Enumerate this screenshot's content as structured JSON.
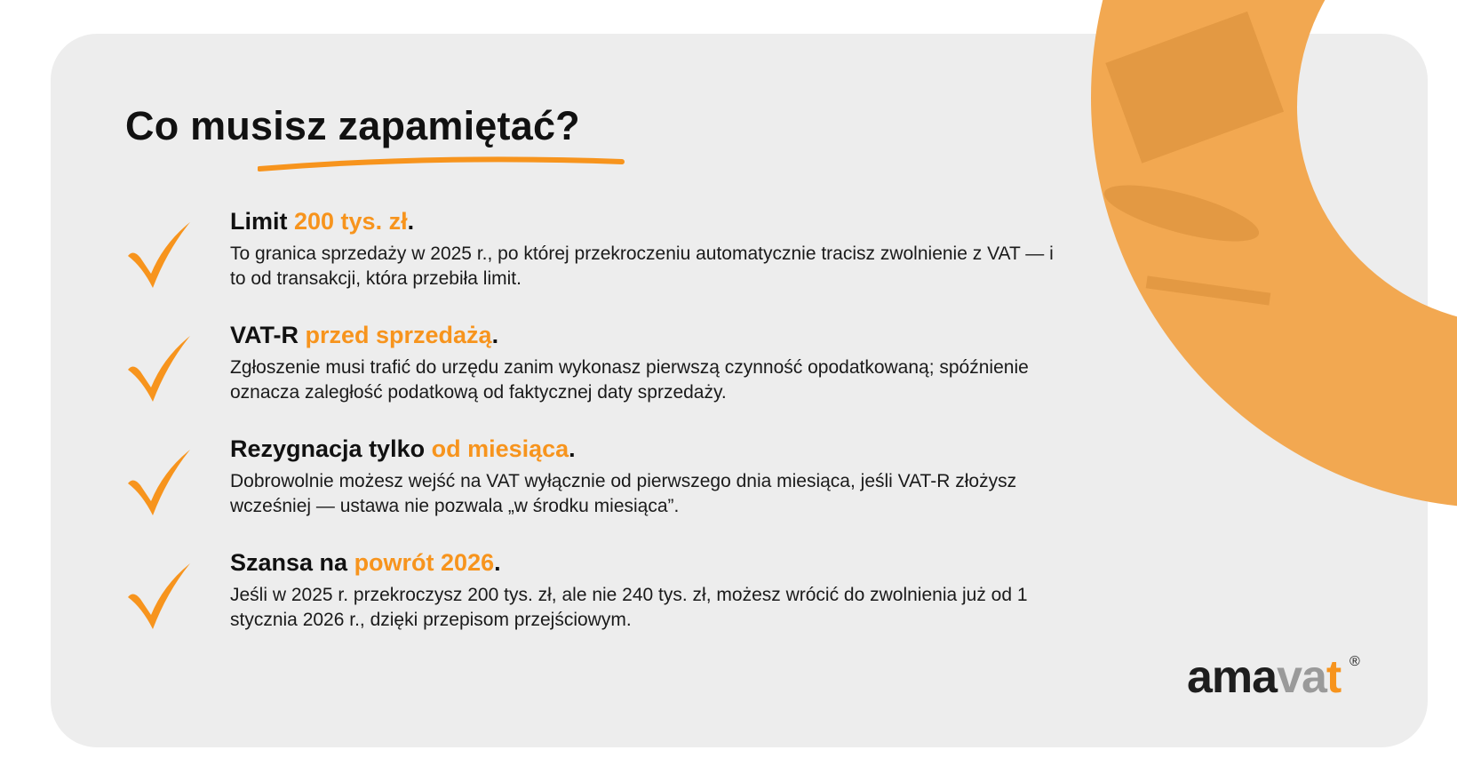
{
  "title": "Co musisz zapamiętać?",
  "accent_color": "#f7941d",
  "items": [
    {
      "head_plain": "Limit ",
      "head_accent": "200 tys. zł",
      "head_end": ".",
      "body": "To granica sprzedaży w 2025 r., po której przekroczeniu automatycznie tracisz zwolnienie z VAT — i to od transakcji, która przebiła limit.",
      "icon": "checkmark-icon"
    },
    {
      "head_plain": "VAT-R ",
      "head_accent": "przed sprzedażą",
      "head_end": ".",
      "body": "Zgłoszenie musi trafić do urzędu zanim wykonasz pierwszą czynność opodatkowaną; spóźnienie oznacza zaległość podatkową od faktycznej daty sprzedaży.",
      "icon": "checkmark-icon"
    },
    {
      "head_plain": "Rezygnacja tylko ",
      "head_accent": "od miesiąca",
      "head_end": ".",
      "body": "Dobrowolnie możesz wejść na VAT wyłącznie od pierwszego dnia miesiąca, jeśli VAT-R złożysz wcześniej — ustawa nie pozwala „w środku miesiąca”.",
      "icon": "checkmark-icon"
    },
    {
      "head_plain": "Szansa na ",
      "head_accent": "powrót 2026",
      "head_end": ".",
      "body": "Jeśli w 2025 r. przekroczysz 200 tys. zł, ale nie 240 tys. zł, możesz wrócić do zwolnienia już od 1 stycznia 2026 r., dzięki przepisom przejściowym.",
      "icon": "checkmark-icon"
    }
  ],
  "logo": {
    "part1": "ama",
    "part2": "va",
    "part3": "t",
    "registered": "®"
  }
}
